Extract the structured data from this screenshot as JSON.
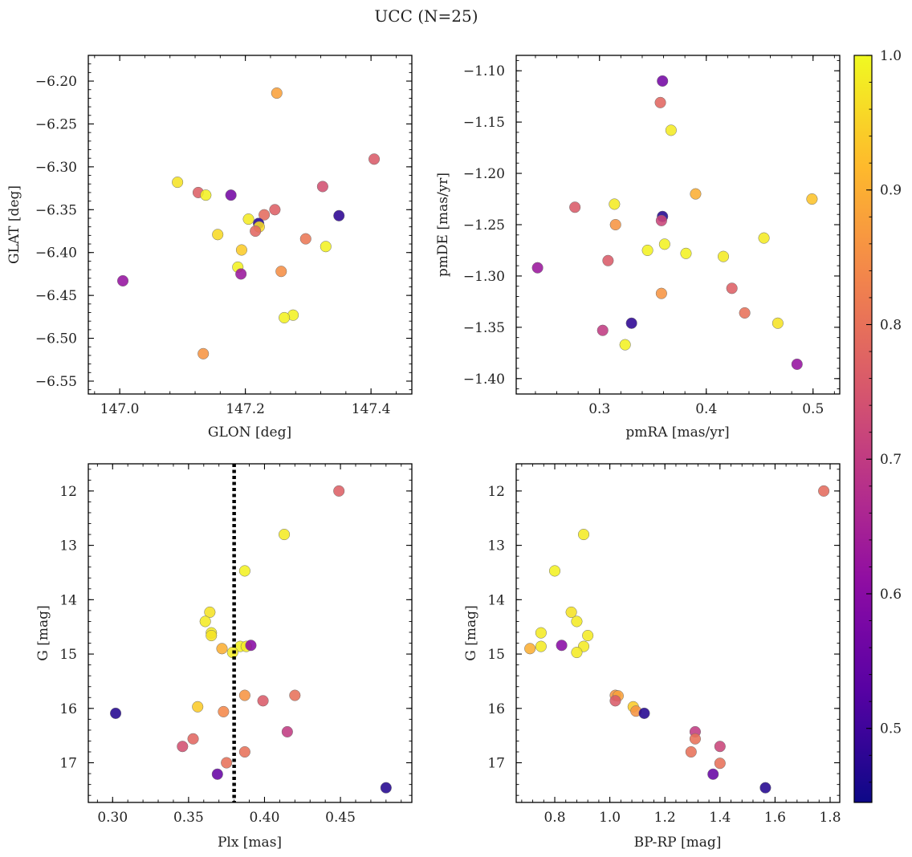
{
  "figure_title": "UCC (N=25)",
  "colorbar": {
    "ticks": [
      "0.5",
      "0.6",
      "0.7",
      "0.8",
      "0.9",
      "1.0"
    ],
    "range": [
      0.445,
      1.0
    ],
    "colormap": "plasma"
  },
  "chart_data": [
    {
      "type": "scatter",
      "xlabel": "GLON [deg]",
      "ylabel": "GLAT [deg]",
      "xlim": [
        146.95,
        147.465
      ],
      "ylim": [
        -6.565,
        -6.17
      ],
      "xticks": [
        147.0,
        147.2,
        147.4
      ],
      "xtick_labels": [
        "147.0",
        "147.2",
        "147.4"
      ],
      "yticks": [
        -6.2,
        -6.25,
        -6.3,
        -6.35,
        -6.4,
        -6.45,
        -6.5,
        -6.55
      ],
      "ytick_labels": [
        "−6.20",
        "−6.25",
        "−6.30",
        "−6.35",
        "−6.40",
        "−6.45",
        "−6.50",
        "−6.55"
      ],
      "points": [
        {
          "x": 147.25,
          "y": -6.214,
          "c": 0.88
        },
        {
          "x": 147.405,
          "y": -6.291,
          "c": 0.76
        },
        {
          "x": 147.092,
          "y": -6.318,
          "c": 0.97
        },
        {
          "x": 147.125,
          "y": -6.33,
          "c": 0.77
        },
        {
          "x": 147.137,
          "y": -6.333,
          "c": 0.99
        },
        {
          "x": 147.177,
          "y": -6.333,
          "c": 0.57
        },
        {
          "x": 147.323,
          "y": -6.323,
          "c": 0.74
        },
        {
          "x": 147.349,
          "y": -6.357,
          "c": 0.48
        },
        {
          "x": 147.247,
          "y": -6.35,
          "c": 0.77
        },
        {
          "x": 147.23,
          "y": -6.356,
          "c": 0.79
        },
        {
          "x": 147.205,
          "y": -6.361,
          "c": 0.98
        },
        {
          "x": 147.221,
          "y": -6.366,
          "c": 0.47
        },
        {
          "x": 147.222,
          "y": -6.37,
          "c": 0.96
        },
        {
          "x": 147.216,
          "y": -6.375,
          "c": 0.78
        },
        {
          "x": 147.156,
          "y": -6.379,
          "c": 0.96
        },
        {
          "x": 147.296,
          "y": -6.384,
          "c": 0.81
        },
        {
          "x": 147.328,
          "y": -6.393,
          "c": 0.99
        },
        {
          "x": 147.194,
          "y": -6.397,
          "c": 0.94
        },
        {
          "x": 147.188,
          "y": -6.417,
          "c": 0.99
        },
        {
          "x": 147.193,
          "y": -6.425,
          "c": 0.63
        },
        {
          "x": 147.257,
          "y": -6.422,
          "c": 0.85
        },
        {
          "x": 147.005,
          "y": -6.433,
          "c": 0.62
        },
        {
          "x": 147.276,
          "y": -6.473,
          "c": 0.99
        },
        {
          "x": 147.262,
          "y": -6.476,
          "c": 0.99
        },
        {
          "x": 147.133,
          "y": -6.518,
          "c": 0.86
        }
      ]
    },
    {
      "type": "scatter",
      "xlabel": "pmRA [mas/yr]",
      "ylabel": "pmDE [mas/yr]",
      "xlim": [
        0.222,
        0.525
      ],
      "ylim": [
        -1.415,
        -1.085
      ],
      "xticks": [
        0.3,
        0.4,
        0.5
      ],
      "xtick_labels": [
        "0.3",
        "0.4",
        "0.5"
      ],
      "yticks": [
        -1.1,
        -1.15,
        -1.2,
        -1.25,
        -1.3,
        -1.35,
        -1.4
      ],
      "ytick_labels": [
        "−1.10",
        "−1.15",
        "−1.20",
        "−1.25",
        "−1.30",
        "−1.35",
        "−1.40"
      ],
      "points": [
        {
          "x": 0.359,
          "y": -1.11,
          "c": 0.57
        },
        {
          "x": 0.357,
          "y": -1.131,
          "c": 0.78
        },
        {
          "x": 0.367,
          "y": -1.158,
          "c": 0.98
        },
        {
          "x": 0.39,
          "y": -1.22,
          "c": 0.9
        },
        {
          "x": 0.499,
          "y": -1.225,
          "c": 0.93
        },
        {
          "x": 0.314,
          "y": -1.23,
          "c": 0.98
        },
        {
          "x": 0.277,
          "y": -1.233,
          "c": 0.76
        },
        {
          "x": 0.359,
          "y": -1.242,
          "c": 0.47
        },
        {
          "x": 0.358,
          "y": -1.246,
          "c": 0.72
        },
        {
          "x": 0.315,
          "y": -1.25,
          "c": 0.86
        },
        {
          "x": 0.454,
          "y": -1.263,
          "c": 0.98
        },
        {
          "x": 0.361,
          "y": -1.269,
          "c": 0.99
        },
        {
          "x": 0.345,
          "y": -1.275,
          "c": 0.99
        },
        {
          "x": 0.381,
          "y": -1.278,
          "c": 0.99
        },
        {
          "x": 0.416,
          "y": -1.281,
          "c": 0.98
        },
        {
          "x": 0.308,
          "y": -1.285,
          "c": 0.76
        },
        {
          "x": 0.242,
          "y": -1.292,
          "c": 0.63
        },
        {
          "x": 0.424,
          "y": -1.312,
          "c": 0.77
        },
        {
          "x": 0.358,
          "y": -1.317,
          "c": 0.86
        },
        {
          "x": 0.436,
          "y": -1.336,
          "c": 0.8
        },
        {
          "x": 0.33,
          "y": -1.346,
          "c": 0.48
        },
        {
          "x": 0.467,
          "y": -1.346,
          "c": 0.97
        },
        {
          "x": 0.303,
          "y": -1.353,
          "c": 0.7
        },
        {
          "x": 0.324,
          "y": -1.367,
          "c": 0.99
        },
        {
          "x": 0.485,
          "y": -1.386,
          "c": 0.62
        }
      ]
    },
    {
      "type": "scatter",
      "xlabel": "Plx [mas]",
      "ylabel": "G [mag]",
      "xlim": [
        0.284,
        0.497
      ],
      "ylim": [
        17.73,
        11.5
      ],
      "xticks": [
        0.3,
        0.35,
        0.4,
        0.45
      ],
      "xtick_labels": [
        "0.30",
        "0.35",
        "0.40",
        "0.45"
      ],
      "yticks": [
        12,
        13,
        14,
        15,
        16,
        17
      ],
      "ytick_labels": [
        "12",
        "13",
        "14",
        "15",
        "16",
        "17"
      ],
      "vline": {
        "x": 0.38,
        "style": "dotted"
      },
      "points": [
        {
          "x": 0.449,
          "y": 12.0,
          "c": 0.77
        },
        {
          "x": 0.413,
          "y": 12.8,
          "c": 0.98
        },
        {
          "x": 0.387,
          "y": 13.47,
          "c": 0.99
        },
        {
          "x": 0.364,
          "y": 14.23,
          "c": 0.97
        },
        {
          "x": 0.361,
          "y": 14.4,
          "c": 0.98
        },
        {
          "x": 0.365,
          "y": 14.61,
          "c": 0.98
        },
        {
          "x": 0.365,
          "y": 14.66,
          "c": 0.97
        },
        {
          "x": 0.372,
          "y": 14.9,
          "c": 0.9
        },
        {
          "x": 0.384,
          "y": 14.86,
          "c": 0.99
        },
        {
          "x": 0.388,
          "y": 14.86,
          "c": 0.98
        },
        {
          "x": 0.391,
          "y": 14.84,
          "c": 0.6
        },
        {
          "x": 0.379,
          "y": 14.97,
          "c": 0.98
        },
        {
          "x": 0.387,
          "y": 15.76,
          "c": 0.86
        },
        {
          "x": 0.42,
          "y": 15.76,
          "c": 0.8
        },
        {
          "x": 0.399,
          "y": 15.86,
          "c": 0.76
        },
        {
          "x": 0.356,
          "y": 15.97,
          "c": 0.94
        },
        {
          "x": 0.373,
          "y": 16.06,
          "c": 0.84
        },
        {
          "x": 0.302,
          "y": 16.09,
          "c": 0.47
        },
        {
          "x": 0.415,
          "y": 16.43,
          "c": 0.7
        },
        {
          "x": 0.353,
          "y": 16.56,
          "c": 0.78
        },
        {
          "x": 0.346,
          "y": 16.7,
          "c": 0.74
        },
        {
          "x": 0.387,
          "y": 16.8,
          "c": 0.8
        },
        {
          "x": 0.375,
          "y": 17.0,
          "c": 0.8
        },
        {
          "x": 0.369,
          "y": 17.21,
          "c": 0.55
        },
        {
          "x": 0.48,
          "y": 17.46,
          "c": 0.47
        }
      ]
    },
    {
      "type": "scatter",
      "xlabel": "BP-RP [mag]",
      "ylabel": "G [mag]",
      "xlim": [
        0.66,
        1.835
      ],
      "ylim": [
        17.73,
        11.5
      ],
      "xticks": [
        0.8,
        1.0,
        1.2,
        1.4,
        1.6,
        1.8
      ],
      "xtick_labels": [
        "0.8",
        "1.0",
        "1.2",
        "1.4",
        "1.6",
        "1.8"
      ],
      "yticks": [
        12,
        13,
        14,
        15,
        16,
        17
      ],
      "ytick_labels": [
        "12",
        "13",
        "14",
        "15",
        "16",
        "17"
      ],
      "points": [
        {
          "x": 1.777,
          "y": 12.0,
          "c": 0.79
        },
        {
          "x": 0.905,
          "y": 12.8,
          "c": 0.98
        },
        {
          "x": 0.8,
          "y": 13.47,
          "c": 0.99
        },
        {
          "x": 0.86,
          "y": 14.23,
          "c": 0.97
        },
        {
          "x": 0.88,
          "y": 14.4,
          "c": 0.98
        },
        {
          "x": 0.75,
          "y": 14.61,
          "c": 0.98
        },
        {
          "x": 0.92,
          "y": 14.66,
          "c": 0.98
        },
        {
          "x": 0.825,
          "y": 14.84,
          "c": 0.6
        },
        {
          "x": 0.75,
          "y": 14.86,
          "c": 0.98
        },
        {
          "x": 0.905,
          "y": 14.86,
          "c": 0.98
        },
        {
          "x": 0.71,
          "y": 14.9,
          "c": 0.9
        },
        {
          "x": 0.88,
          "y": 14.97,
          "c": 0.98
        },
        {
          "x": 1.02,
          "y": 15.76,
          "c": 0.86
        },
        {
          "x": 1.03,
          "y": 15.77,
          "c": 0.88
        },
        {
          "x": 1.02,
          "y": 15.86,
          "c": 0.76
        },
        {
          "x": 1.085,
          "y": 15.97,
          "c": 0.94
        },
        {
          "x": 1.095,
          "y": 16.05,
          "c": 0.86
        },
        {
          "x": 1.125,
          "y": 16.09,
          "c": 0.47
        },
        {
          "x": 1.31,
          "y": 16.43,
          "c": 0.7
        },
        {
          "x": 1.31,
          "y": 16.56,
          "c": 0.8
        },
        {
          "x": 1.4,
          "y": 16.7,
          "c": 0.72
        },
        {
          "x": 1.295,
          "y": 16.8,
          "c": 0.8
        },
        {
          "x": 1.4,
          "y": 17.01,
          "c": 0.8
        },
        {
          "x": 1.375,
          "y": 17.21,
          "c": 0.55
        },
        {
          "x": 1.565,
          "y": 17.46,
          "c": 0.47
        }
      ]
    }
  ]
}
